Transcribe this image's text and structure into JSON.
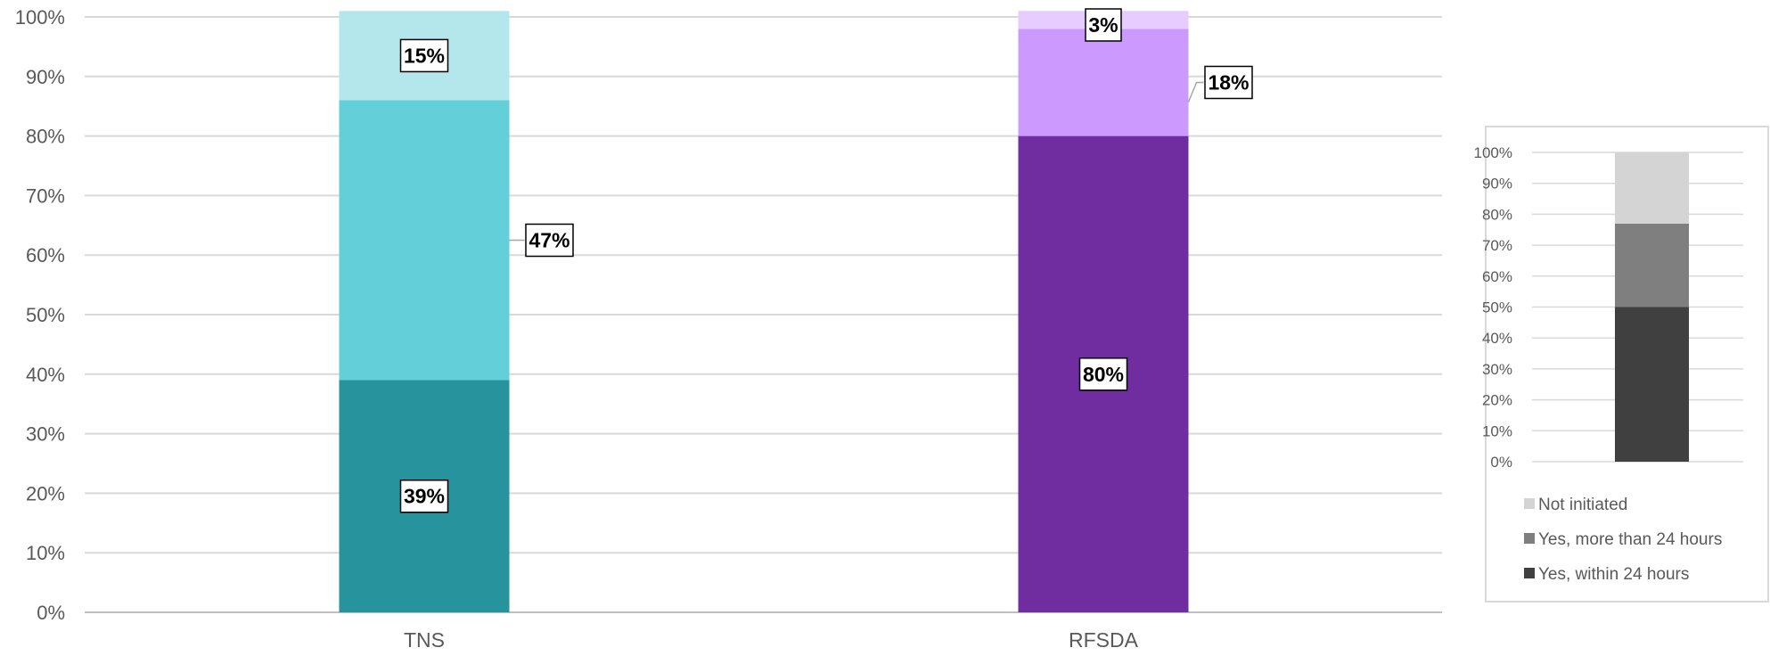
{
  "chart_data": {
    "type": "bar",
    "stacked": true,
    "categories": [
      "TNS",
      "RFSDA"
    ],
    "yticks": [
      "0%",
      "10%",
      "20%",
      "30%",
      "40%",
      "50%",
      "60%",
      "70%",
      "80%",
      "90%",
      "100%"
    ],
    "ylim": [
      0,
      100
    ],
    "grid": true,
    "bars": [
      {
        "category": "TNS",
        "segments": [
          {
            "value": 39,
            "label": "39%",
            "color": "#27939D"
          },
          {
            "value": 47,
            "label": "47%",
            "color": "#63CFD8"
          },
          {
            "value": 15,
            "label": "15%",
            "color": "#B4E7EB"
          }
        ]
      },
      {
        "category": "RFSDA",
        "segments": [
          {
            "value": 80,
            "label": "80%",
            "color": "#6F2DA0"
          },
          {
            "value": 18,
            "label": "18%",
            "color": "#CC99FF"
          },
          {
            "value": 3,
            "label": "3%",
            "color": "#E6CCFF"
          }
        ]
      }
    ],
    "key": {
      "yticks": [
        "0%",
        "10%",
        "20%",
        "30%",
        "40%",
        "50%",
        "60%",
        "70%",
        "80%",
        "90%",
        "100%"
      ],
      "bar": [
        {
          "value": 50,
          "color": "#404040"
        },
        {
          "value": 27,
          "color": "#7F7F7F"
        },
        {
          "value": 23,
          "color": "#D4D4D4"
        }
      ],
      "legend": [
        {
          "label": "Not initiated",
          "color": "#D4D4D4"
        },
        {
          "label": "Yes, more than 24 hours",
          "color": "#7F7F7F"
        },
        {
          "label": "Yes, within 24 hours",
          "color": "#404040"
        }
      ]
    }
  }
}
